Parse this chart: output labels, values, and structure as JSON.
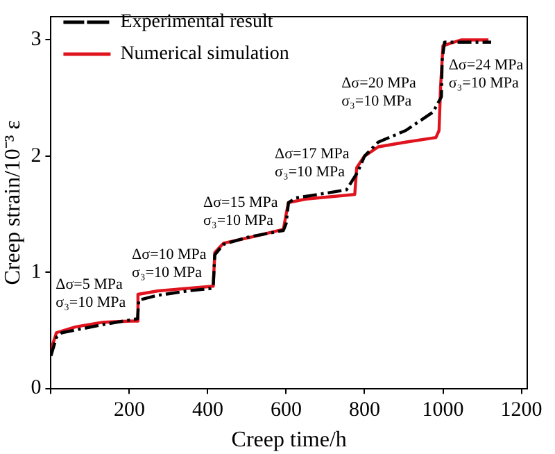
{
  "chart_data": {
    "type": "line",
    "xlabel": "Creep time/h",
    "ylabel": "Creep strain/10⁻³ ε",
    "xlim": [
      0,
      1215
    ],
    "ylim": [
      0,
      3.2
    ],
    "xticks": [
      {
        "value": 0,
        "label": null
      },
      200,
      400,
      600,
      800,
      1000,
      1200
    ],
    "yticks": [
      0,
      1,
      2,
      3
    ],
    "grid": false,
    "legend": "top left",
    "marker": "none",
    "series": [
      {
        "name": "Experimental result",
        "color": "#000000",
        "line_style": "dashed",
        "x": [
          0,
          14,
          28,
          133,
          221,
          224,
          270,
          350,
          407,
          414,
          418,
          440,
          500,
          593,
          600,
          606,
          625,
          700,
          754,
          782,
          800,
          835,
          905,
          975,
          996,
          998,
          1004,
          1046,
          1123
        ],
        "values": [
          0.28,
          0.44,
          0.48,
          0.55,
          0.6,
          0.76,
          0.8,
          0.84,
          0.86,
          0.88,
          1.15,
          1.24,
          1.3,
          1.36,
          1.42,
          1.6,
          1.64,
          1.68,
          1.71,
          1.86,
          2.0,
          2.12,
          2.22,
          2.38,
          2.51,
          2.83,
          2.98,
          2.98,
          2.98
        ]
      },
      {
        "name": "Numerical simulation",
        "color": "#e0141e",
        "line_style": "solid",
        "x": [
          0,
          14,
          63,
          133,
          204,
          221,
          222,
          274,
          379,
          414,
          418,
          440,
          520,
          593,
          600,
          606,
          650,
          775,
          780,
          800,
          835,
          905,
          982,
          990,
          994,
          1000,
          1046,
          1116
        ],
        "values": [
          0.33,
          0.48,
          0.53,
          0.57,
          0.58,
          0.58,
          0.81,
          0.84,
          0.87,
          0.88,
          1.17,
          1.25,
          1.31,
          1.37,
          1.5,
          1.6,
          1.63,
          1.67,
          1.9,
          2.0,
          2.08,
          2.12,
          2.16,
          2.22,
          2.6,
          2.95,
          3.0,
          3.0
        ]
      }
    ],
    "annotations": [
      "Δσ=5 MPa\nσ₃=10 MPa",
      "Δσ=10 MPa\nσ₃=10 MPa",
      "Δσ=15 MPa\nσ₃=10 MPa",
      "Δσ=17 MPa\nσ₃=10 MPa",
      "Δσ=20 MPa\nσ₃=10 MPa",
      "Δσ=24 MPa\nσ₃=10 MPa"
    ]
  }
}
